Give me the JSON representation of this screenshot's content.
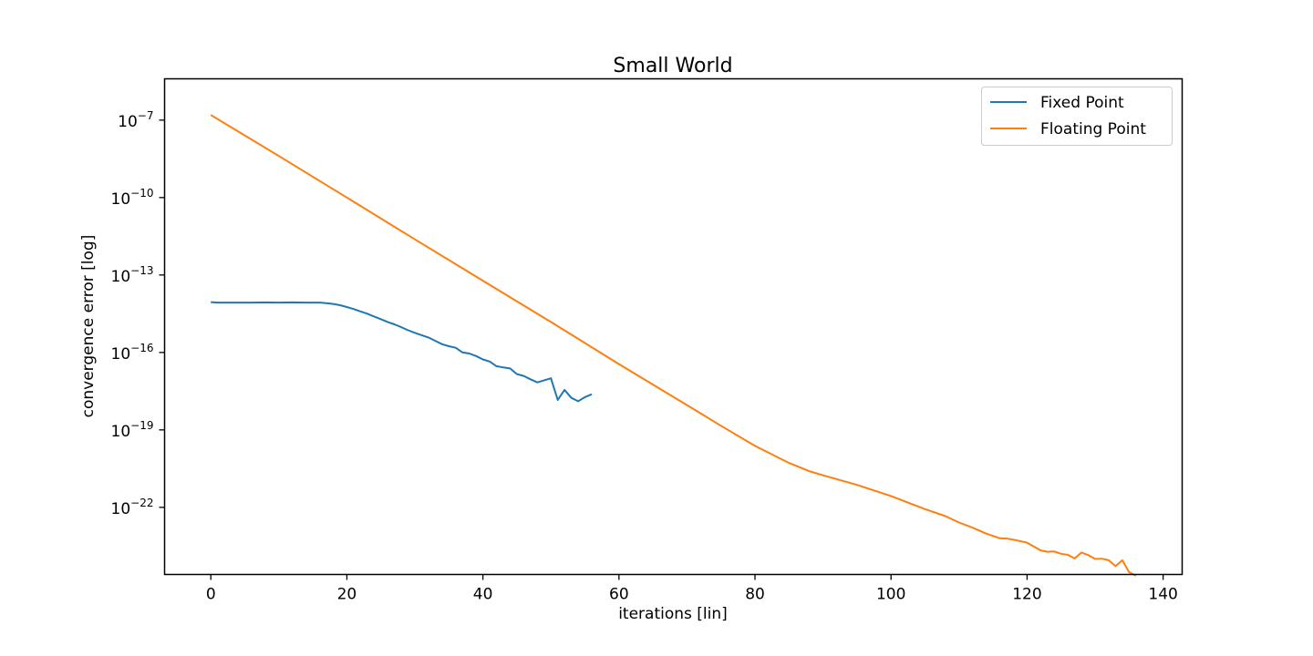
{
  "chart_data": {
    "type": "line",
    "title": "Small World",
    "xlabel": "iterations [lin]",
    "ylabel": "convergence error [log]",
    "y_scale": "log",
    "xlim": [
      -6.8,
      142.8
    ],
    "ylim_log10": [
      -24.6,
      -5.4
    ],
    "grid": false,
    "legend_position": "top-right",
    "x_ticks": [
      0,
      20,
      40,
      60,
      80,
      100,
      120,
      140
    ],
    "x_tick_labels": [
      "0",
      "20",
      "40",
      "60",
      "80",
      "100",
      "120",
      "140"
    ],
    "y_ticks_log10": [
      -7,
      -10,
      -13,
      -16,
      -19,
      -22
    ],
    "y_tick_labels": [
      {
        "base": "10",
        "exp": "−7"
      },
      {
        "base": "10",
        "exp": "−10"
      },
      {
        "base": "10",
        "exp": "−13"
      },
      {
        "base": "10",
        "exp": "−16"
      },
      {
        "base": "10",
        "exp": "−19"
      },
      {
        "base": "10",
        "exp": "−22"
      }
    ],
    "series": [
      {
        "name": "Fixed Point",
        "color": "#1f77b4",
        "x": [
          0,
          1,
          2,
          4,
          6,
          8,
          10,
          12,
          14,
          16,
          17,
          18,
          19,
          20,
          21,
          22,
          23,
          24,
          25,
          26,
          27,
          28,
          29,
          30,
          31,
          32,
          33,
          34,
          35,
          36,
          37,
          38,
          39,
          40,
          41,
          42,
          43,
          44,
          45,
          46,
          47,
          48,
          49,
          50,
          51,
          52,
          53,
          54,
          55,
          56
        ],
        "log10_y": [
          -14.05,
          -14.07,
          -14.07,
          -14.07,
          -14.07,
          -14.06,
          -14.07,
          -14.06,
          -14.07,
          -14.07,
          -14.09,
          -14.12,
          -14.17,
          -14.24,
          -14.32,
          -14.41,
          -14.5,
          -14.61,
          -14.71,
          -14.82,
          -14.91,
          -15.02,
          -15.14,
          -15.24,
          -15.33,
          -15.42,
          -15.55,
          -15.68,
          -15.76,
          -15.82,
          -16.0,
          -16.04,
          -16.14,
          -16.27,
          -16.35,
          -16.53,
          -16.58,
          -16.62,
          -16.84,
          -16.91,
          -17.04,
          -17.16,
          -17.08,
          -17.0,
          -17.84,
          -17.45,
          -17.76,
          -17.89,
          -17.73,
          -17.62
        ]
      },
      {
        "name": "Floating Point",
        "color": "#ff7f0e",
        "x": [
          0,
          10,
          20,
          30,
          40,
          50,
          60,
          70,
          75,
          80,
          85,
          88,
          90,
          95,
          100,
          105,
          108,
          110,
          112,
          114,
          116,
          117,
          118,
          120,
          121,
          122,
          123,
          124,
          125,
          126,
          127,
          128,
          129,
          130,
          131,
          132,
          133,
          134,
          135,
          136
        ],
        "log10_y": [
          -6.8,
          -8.39,
          -10.0,
          -11.62,
          -13.22,
          -14.82,
          -16.45,
          -18.04,
          -18.84,
          -19.62,
          -20.28,
          -20.6,
          -20.76,
          -21.13,
          -21.56,
          -22.07,
          -22.34,
          -22.59,
          -22.79,
          -23.02,
          -23.2,
          -23.21,
          -23.25,
          -23.37,
          -23.52,
          -23.67,
          -23.72,
          -23.71,
          -23.8,
          -23.84,
          -23.98,
          -23.75,
          -23.85,
          -24.0,
          -23.99,
          -24.05,
          -24.28,
          -24.05,
          -24.51,
          -24.65
        ]
      }
    ]
  }
}
